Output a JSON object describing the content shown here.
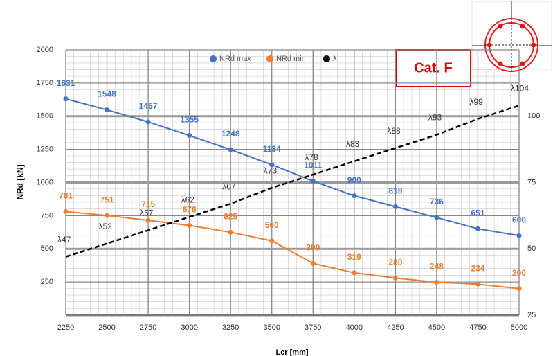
{
  "chart_data": {
    "type": "line",
    "x": [
      2250,
      2500,
      2750,
      3000,
      3250,
      3500,
      3750,
      4000,
      4250,
      4500,
      4750,
      5000
    ],
    "series": [
      {
        "name": "NRd max",
        "color": "#4472c4",
        "values": [
          1631,
          1548,
          1457,
          1355,
          1248,
          1134,
          1011,
          900,
          818,
          736,
          651,
          600
        ]
      },
      {
        "name": "NRd min",
        "color": "#ed7d31",
        "values": [
          781,
          751,
          715,
          676,
          625,
          560,
          390,
          319,
          280,
          248,
          234,
          200
        ]
      },
      {
        "name": "λ",
        "color": "#000000",
        "axis": "y2",
        "dashed": true,
        "values": [
          47,
          52,
          57,
          62,
          67,
          73,
          78,
          83,
          88,
          93,
          99,
          104
        ],
        "value_labels": [
          "λ47",
          "λ52",
          "λ57",
          "λ62",
          "λ67",
          "λ73",
          "λ78",
          "λ83",
          "λ88",
          "λ93",
          "λ99",
          "λ104"
        ]
      }
    ],
    "xlim": [
      2250,
      5000
    ],
    "xticks": [
      2250,
      2500,
      2750,
      3000,
      3250,
      3500,
      3750,
      4000,
      4250,
      4500,
      4750,
      5000
    ],
    "ylim": [
      0,
      2000
    ],
    "yticks": [
      250,
      500,
      750,
      1000,
      1250,
      1500,
      1750,
      2000
    ],
    "y2lim": [
      25,
      125
    ],
    "y2ticks": [
      25,
      50,
      75,
      100
    ],
    "ylabel": "NRd [kN]",
    "xlabel": "Lcr [mm]",
    "annotation": "Cat. F",
    "grid": true,
    "legend": "top"
  }
}
